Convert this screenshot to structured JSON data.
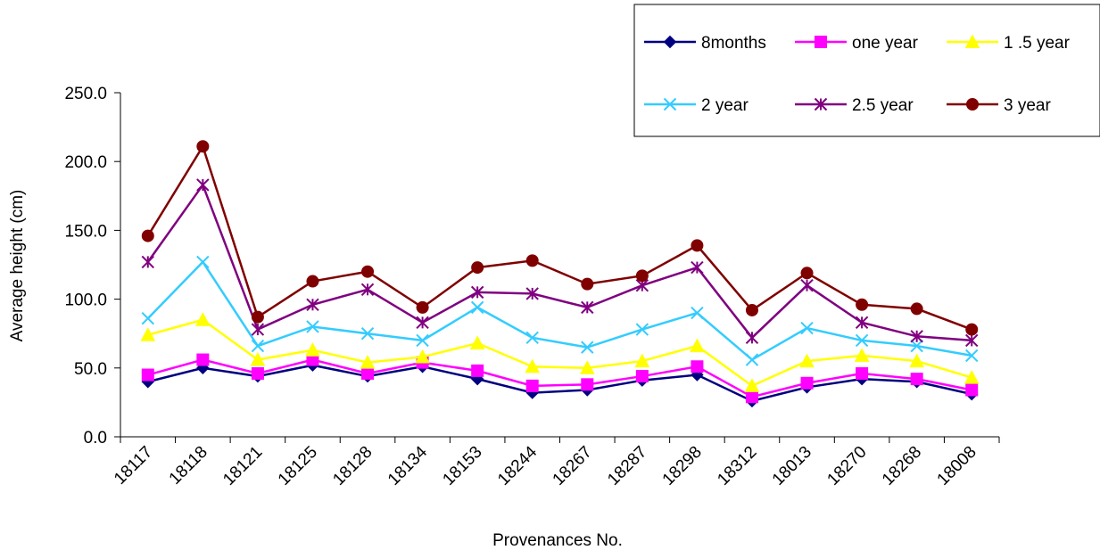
{
  "chart_data": {
    "type": "line",
    "xlabel": "Provenances No.",
    "ylabel": "Average height (cm)",
    "ylim": [
      0,
      250
    ],
    "yticks": [
      "0.0",
      "50.0",
      "100.0",
      "150.0",
      "200.0",
      "250.0"
    ],
    "grid": false,
    "legend_position": "top-right",
    "categories": [
      "18117",
      "18118",
      "18121",
      "18125",
      "18128",
      "18134",
      "18153",
      "18244",
      "18267",
      "18287",
      "18298",
      "18312",
      "18013",
      "18270",
      "18268",
      "18008"
    ],
    "series": [
      {
        "name": "8months",
        "color": "#000080",
        "marker": "diamond",
        "values": [
          40,
          50,
          44,
          52,
          44,
          51,
          42,
          32,
          34,
          41,
          45,
          26,
          36,
          42,
          40,
          31
        ]
      },
      {
        "name": "one year",
        "color": "#FF00FF",
        "marker": "square",
        "values": [
          45,
          56,
          46,
          56,
          46,
          54,
          48,
          37,
          38,
          44,
          51,
          29,
          39,
          46,
          42,
          34
        ]
      },
      {
        "name": "1 .5 year",
        "color": "#FFFF00",
        "marker": "triangle",
        "values": [
          74,
          85,
          56,
          63,
          54,
          58,
          68,
          51,
          50,
          55,
          66,
          37,
          55,
          59,
          55,
          43
        ]
      },
      {
        "name": "2 year",
        "color": "#33CCFF",
        "marker": "x",
        "values": [
          86,
          127,
          66,
          80,
          75,
          70,
          94,
          72,
          65,
          78,
          90,
          56,
          79,
          70,
          66,
          59
        ]
      },
      {
        "name": "2.5 year",
        "color": "#800080",
        "marker": "star",
        "values": [
          127,
          183,
          78,
          96,
          107,
          83,
          105,
          104,
          94,
          110,
          123,
          72,
          110,
          83,
          73,
          70
        ]
      },
      {
        "name": "3 year",
        "color": "#800000",
        "marker": "circle",
        "values": [
          146,
          211,
          87,
          113,
          120,
          94,
          123,
          128,
          111,
          117,
          139,
          92,
          119,
          96,
          93,
          78
        ]
      }
    ]
  }
}
